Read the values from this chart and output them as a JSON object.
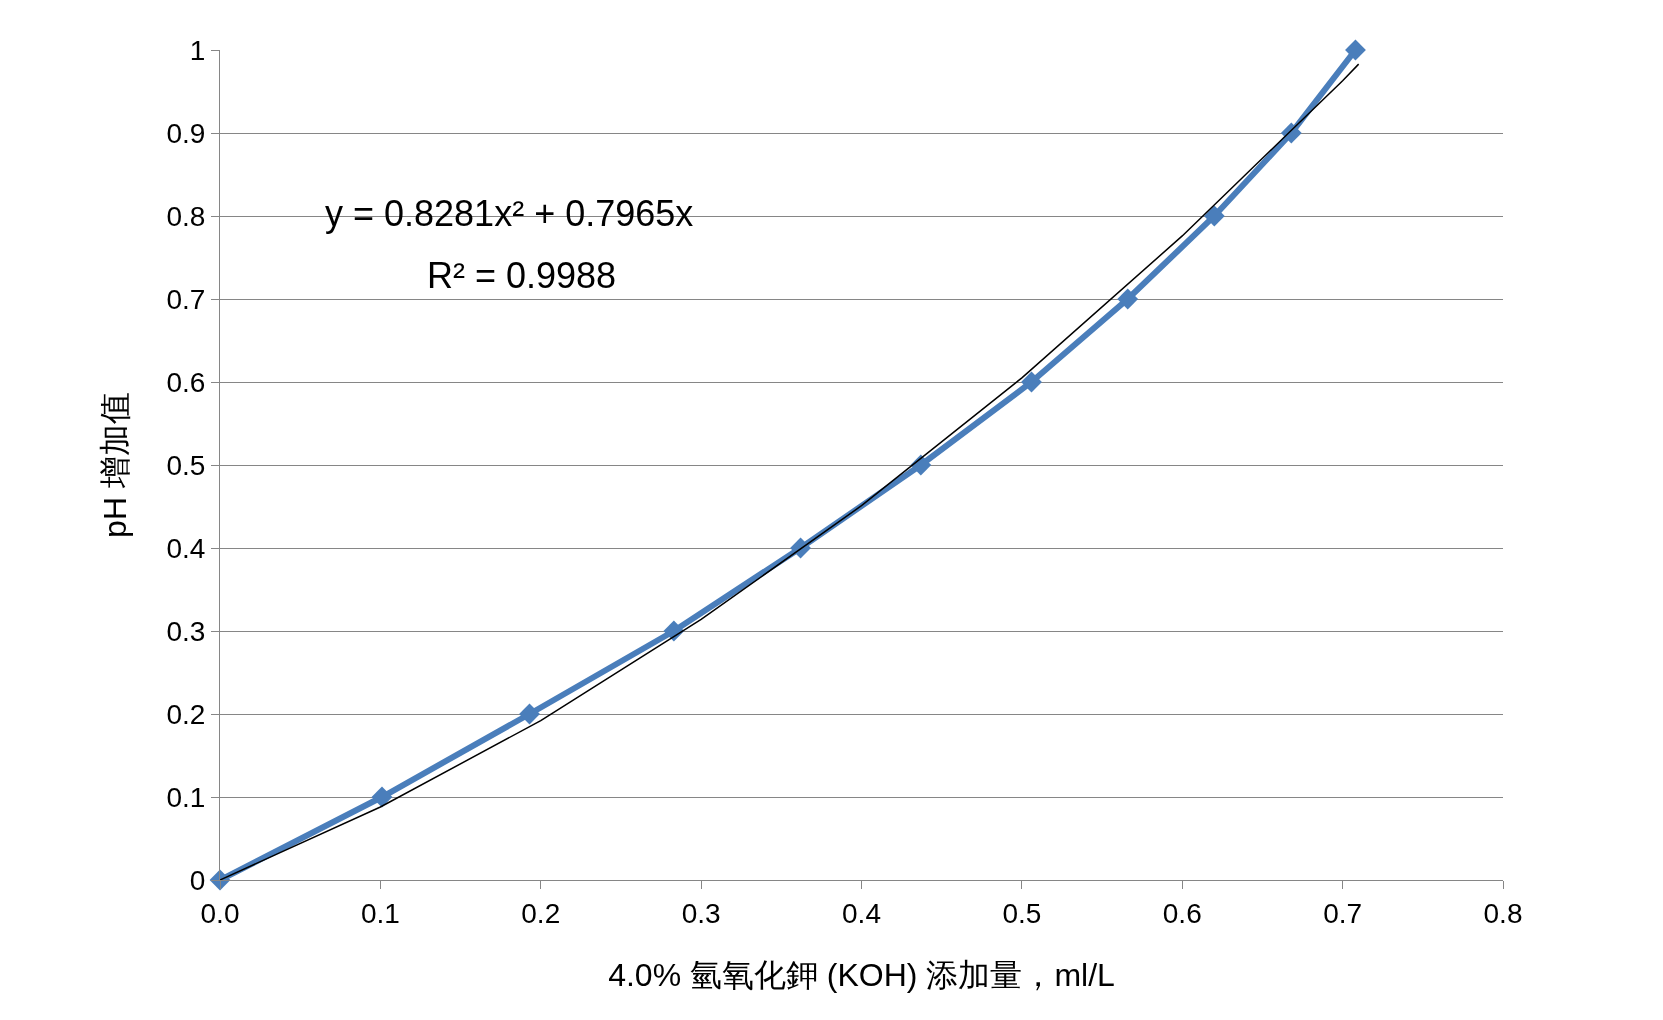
{
  "chart_data": {
    "type": "line",
    "xlabel": "4.0% 氫氧化鉀 (KOH) 添加量，ml/L",
    "ylabel": "pH 增加值",
    "x": [
      0,
      0.101,
      0.193,
      0.283,
      0.362,
      0.437,
      0.506,
      0.566,
      0.62,
      0.668,
      0.708
    ],
    "series": [
      {
        "color": "#4a7ebb",
        "marker": "diamond",
        "values": [
          0,
          0.1,
          0.2,
          0.3,
          0.4,
          0.5,
          0.6,
          0.7,
          0.8,
          0.9,
          1
        ]
      },
      {
        "type": "line",
        "color": "#000000",
        "marker": "none",
        "x": [
          0,
          0.1,
          0.2,
          0.3,
          0.4,
          0.5,
          0.6,
          0.7,
          0.71
        ],
        "values": [
          0,
          0.088,
          0.192,
          0.314,
          0.451,
          0.605,
          0.776,
          0.963,
          0.983
        ]
      }
    ],
    "annotations": [
      "y = 0.8281x² + 0.7965x",
      "R² = 0.9988"
    ],
    "xlim": [
      0,
      0.8
    ],
    "xticks": [
      {
        "value": 0,
        "label": "0.0"
      },
      0.1,
      0.2,
      0.3,
      0.4,
      0.5,
      0.6,
      0.7,
      0.8
    ],
    "ylim": [
      0,
      1
    ],
    "yticks": [
      0,
      0.1,
      0.2,
      0.3,
      0.4,
      0.5,
      0.6,
      0.7,
      0.8,
      0.9,
      1
    ],
    "grid": "y",
    "line_style": "solid"
  }
}
